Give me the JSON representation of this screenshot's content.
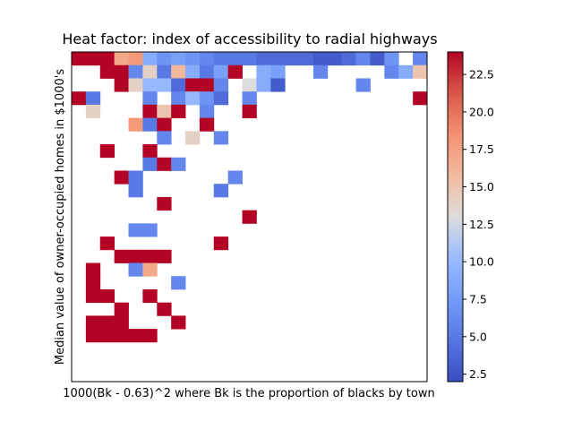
{
  "chart_data": {
    "type": "heatmap",
    "title": "Heat factor: index of accessibility to radial highways",
    "xlabel": "1000(Bk - 0.63)^2 where Bk is the proportion of blacks by town",
    "ylabel": "Median value of owner-occupied homes in $1000's",
    "colormap": "coolwarm",
    "vmin": 2,
    "vmax": 24,
    "colorbar_ticks": [
      2.5,
      5.0,
      7.5,
      10.0,
      12.5,
      15.0,
      17.5,
      20.0,
      22.5
    ],
    "colorbar_tick_labels": [
      "2.5",
      "5.0",
      "7.5",
      "10.0",
      "12.5",
      "15.0",
      "17.5",
      "20.0",
      "22.5"
    ],
    "grid": false,
    "n_cols": 25,
    "n_rows": 25,
    "cells": [
      [
        0,
        0,
        24
      ],
      [
        1,
        0,
        24
      ],
      [
        2,
        0,
        24
      ],
      [
        3,
        0,
        17
      ],
      [
        4,
        0,
        18
      ],
      [
        5,
        0,
        9
      ],
      [
        6,
        0,
        7
      ],
      [
        7,
        0,
        8
      ],
      [
        8,
        0,
        7
      ],
      [
        9,
        0,
        6
      ],
      [
        10,
        0,
        5
      ],
      [
        11,
        0,
        5
      ],
      [
        12,
        0,
        5
      ],
      [
        13,
        0,
        4
      ],
      [
        14,
        0,
        4
      ],
      [
        15,
        0,
        4
      ],
      [
        16,
        0,
        4
      ],
      [
        17,
        0,
        3
      ],
      [
        18,
        0,
        3
      ],
      [
        19,
        0,
        4
      ],
      [
        20,
        0,
        6
      ],
      [
        21,
        0,
        3
      ],
      [
        22,
        0,
        7
      ],
      [
        24,
        0,
        6
      ],
      [
        2,
        1,
        24
      ],
      [
        3,
        1,
        24
      ],
      [
        4,
        1,
        6
      ],
      [
        5,
        1,
        14
      ],
      [
        6,
        1,
        5
      ],
      [
        7,
        1,
        16
      ],
      [
        8,
        1,
        9
      ],
      [
        9,
        1,
        5
      ],
      [
        10,
        1,
        8
      ],
      [
        11,
        1,
        24
      ],
      [
        13,
        1,
        9
      ],
      [
        14,
        1,
        8
      ],
      [
        17,
        1,
        6
      ],
      [
        22,
        1,
        6
      ],
      [
        23,
        1,
        9
      ],
      [
        24,
        1,
        15
      ],
      [
        3,
        2,
        24
      ],
      [
        4,
        2,
        14
      ],
      [
        5,
        2,
        10
      ],
      [
        6,
        2,
        10
      ],
      [
        7,
        2,
        4
      ],
      [
        8,
        2,
        24
      ],
      [
        9,
        2,
        24
      ],
      [
        10,
        2,
        6
      ],
      [
        12,
        2,
        13
      ],
      [
        13,
        2,
        9
      ],
      [
        14,
        2,
        3
      ],
      [
        20,
        2,
        6
      ],
      [
        0,
        3,
        24
      ],
      [
        1,
        3,
        5
      ],
      [
        5,
        3,
        6
      ],
      [
        7,
        3,
        6
      ],
      [
        8,
        3,
        10
      ],
      [
        9,
        3,
        7
      ],
      [
        10,
        3,
        4
      ],
      [
        12,
        3,
        6
      ],
      [
        24,
        3,
        24
      ],
      [
        1,
        4,
        14
      ],
      [
        5,
        4,
        24
      ],
      [
        6,
        4,
        15
      ],
      [
        7,
        4,
        24
      ],
      [
        9,
        4,
        6
      ],
      [
        12,
        4,
        24
      ],
      [
        4,
        5,
        18
      ],
      [
        5,
        5,
        5
      ],
      [
        6,
        5,
        24
      ],
      [
        9,
        5,
        24
      ],
      [
        6,
        6,
        6
      ],
      [
        8,
        6,
        14
      ],
      [
        10,
        6,
        6
      ],
      [
        2,
        7,
        24
      ],
      [
        5,
        7,
        24
      ],
      [
        5,
        8,
        5
      ],
      [
        6,
        8,
        24
      ],
      [
        7,
        8,
        6
      ],
      [
        3,
        9,
        24
      ],
      [
        4,
        9,
        5
      ],
      [
        11,
        9,
        6
      ],
      [
        4,
        10,
        5
      ],
      [
        10,
        10,
        5
      ],
      [
        6,
        11,
        24
      ],
      [
        12,
        12,
        24
      ],
      [
        4,
        13,
        6
      ],
      [
        5,
        13,
        6
      ],
      [
        2,
        14,
        24
      ],
      [
        10,
        14,
        24
      ],
      [
        3,
        15,
        24
      ],
      [
        4,
        15,
        24
      ],
      [
        5,
        15,
        24
      ],
      [
        6,
        15,
        24
      ],
      [
        1,
        16,
        24
      ],
      [
        4,
        16,
        6
      ],
      [
        5,
        16,
        17
      ],
      [
        1,
        17,
        24
      ],
      [
        7,
        17,
        6
      ],
      [
        1,
        18,
        24
      ],
      [
        2,
        18,
        24
      ],
      [
        5,
        18,
        24
      ],
      [
        3,
        19,
        24
      ],
      [
        6,
        19,
        24
      ],
      [
        1,
        20,
        24
      ],
      [
        2,
        20,
        24
      ],
      [
        3,
        20,
        24
      ],
      [
        7,
        20,
        24
      ],
      [
        1,
        21,
        24
      ],
      [
        2,
        21,
        24
      ],
      [
        3,
        21,
        24
      ],
      [
        4,
        21,
        24
      ],
      [
        5,
        21,
        24
      ]
    ]
  }
}
